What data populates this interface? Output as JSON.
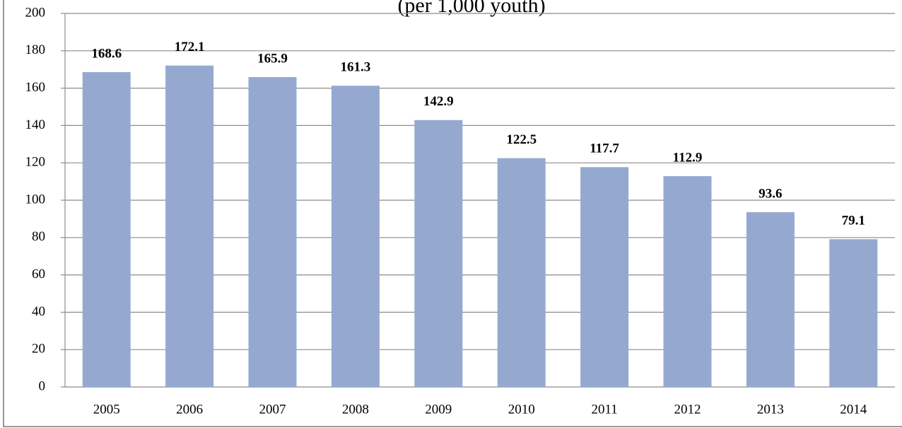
{
  "chart_data": {
    "type": "bar",
    "title": "(per 1,000 youth)",
    "categories": [
      "2005",
      "2006",
      "2007",
      "2008",
      "2009",
      "2010",
      "2011",
      "2012",
      "2013",
      "2014"
    ],
    "values": [
      168.6,
      172.1,
      165.9,
      161.3,
      142.9,
      122.5,
      117.7,
      112.9,
      93.6,
      79.1
    ],
    "color": "#95a9d0",
    "ylim": [
      0,
      200
    ],
    "yticks": [
      0,
      20,
      40,
      60,
      80,
      100,
      120,
      140,
      160,
      180,
      200
    ],
    "grid": true
  }
}
